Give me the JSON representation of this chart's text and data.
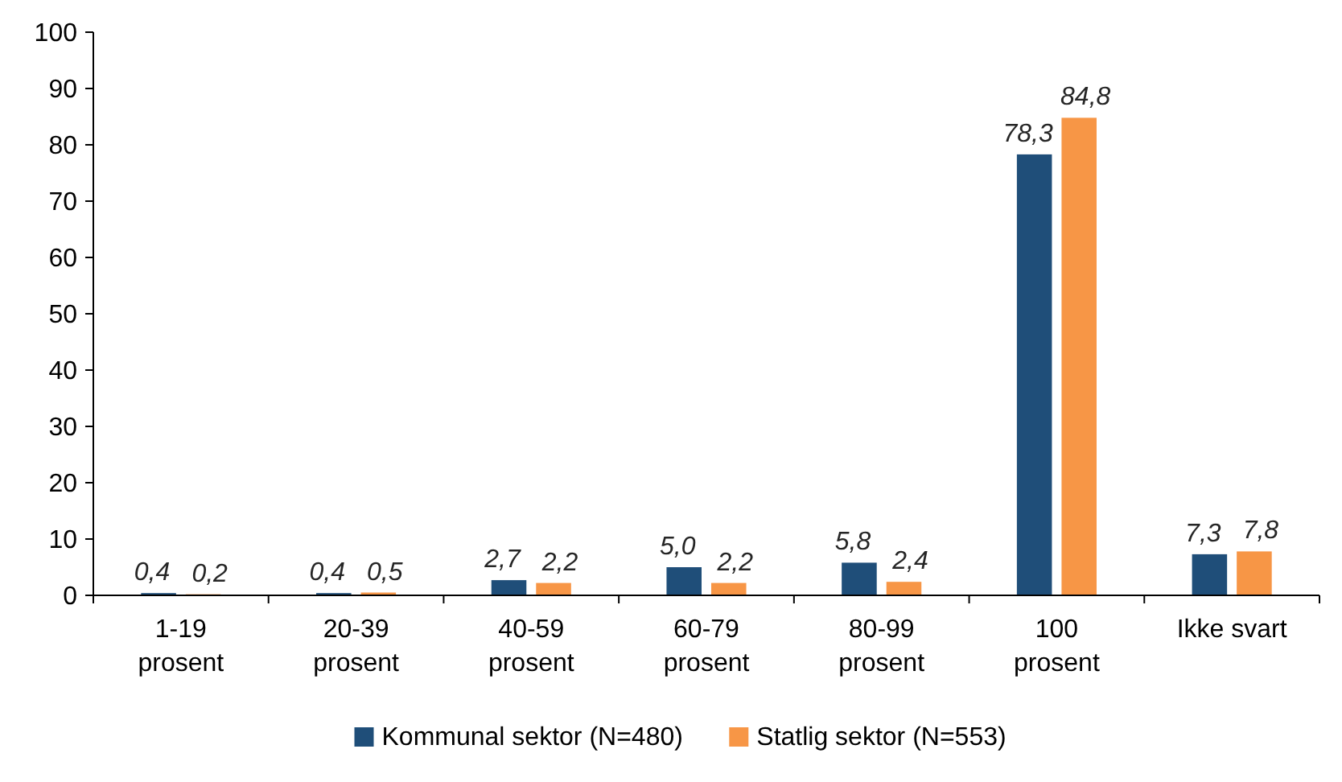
{
  "chart_data": {
    "type": "bar",
    "categories": [
      "1-19\nprosent",
      "20-39\nprosent",
      "40-59\nprosent",
      "60-79\nprosent",
      "80-99\nprosent",
      "100\nprosent",
      "Ikke svart"
    ],
    "series": [
      {
        "name": "Kommunal sektor (N=480)",
        "color": "#1f4e79",
        "values": [
          0.4,
          0.4,
          2.7,
          5.0,
          5.8,
          78.3,
          7.3
        ],
        "value_labels": [
          "0,4",
          "0,4",
          "2,7",
          "5,0",
          "5,8",
          "78,3",
          "7,3"
        ]
      },
      {
        "name": "Statlig sektor (N=553)",
        "color": "#f79646",
        "values": [
          0.2,
          0.5,
          2.2,
          2.2,
          2.4,
          84.8,
          7.8
        ],
        "value_labels": [
          "0,2",
          "0,5",
          "2,2",
          "2,2",
          "2,4",
          "84,8",
          "7,8"
        ]
      }
    ],
    "ylim": [
      0,
      100
    ],
    "yticks": [
      0,
      10,
      20,
      30,
      40,
      50,
      60,
      70,
      80,
      90,
      100
    ],
    "grid": false,
    "legend": "bottom"
  }
}
